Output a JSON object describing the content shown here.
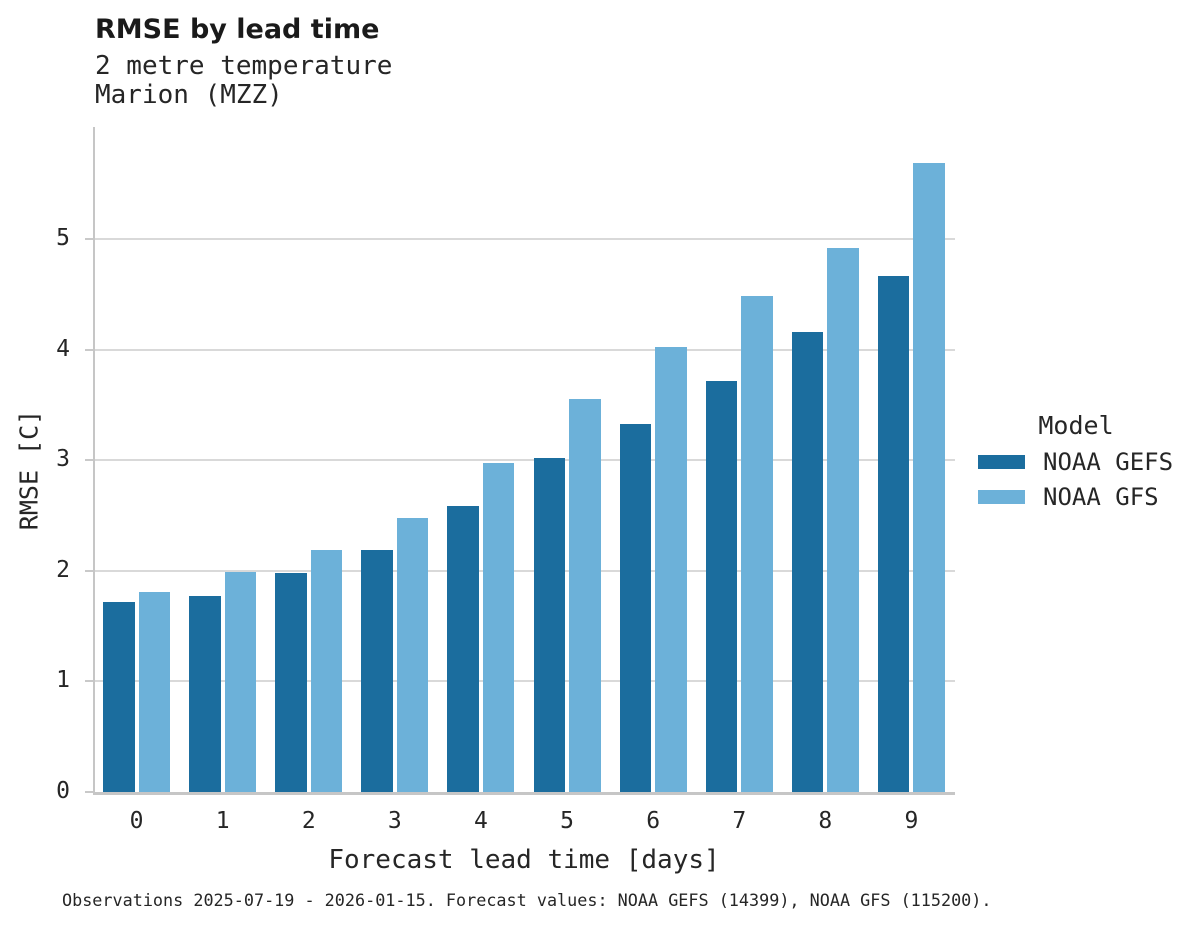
{
  "header": {
    "title": "RMSE by lead time",
    "subtitle_line1": "2 metre temperature",
    "subtitle_line2": "Marion (MZZ)"
  },
  "chart_data": {
    "type": "bar",
    "title": "RMSE by lead time",
    "subtitle": [
      "2 metre temperature",
      "Marion (MZZ)"
    ],
    "categories": [
      "0",
      "1",
      "2",
      "3",
      "4",
      "5",
      "6",
      "7",
      "8",
      "9"
    ],
    "series": [
      {
        "name": "NOAA GEFS",
        "color": "#1b6d9e",
        "values": [
          1.72,
          1.77,
          1.98,
          2.19,
          2.59,
          3.02,
          3.33,
          3.72,
          4.16,
          4.67
        ]
      },
      {
        "name": "NOAA GFS",
        "color": "#6cb1d9",
        "values": [
          1.81,
          1.99,
          2.19,
          2.48,
          2.98,
          3.56,
          4.03,
          4.49,
          4.92,
          5.69
        ]
      }
    ],
    "xlabel": "Forecast lead time [days]",
    "ylabel": "RMSE [C]",
    "ylim": [
      0,
      6
    ],
    "yticks": [
      0,
      1,
      2,
      3,
      4,
      5
    ],
    "grid": "horizontal",
    "legend_position": "right"
  },
  "legend": {
    "title": "Model",
    "items": [
      {
        "label": "NOAA GEFS",
        "color": "#1b6d9e"
      },
      {
        "label": "NOAA GFS",
        "color": "#6cb1d9"
      }
    ]
  },
  "footer": {
    "note": "Observations 2025-07-19 - 2026-01-15. Forecast values: NOAA GEFS (14399), NOAA GFS (115200)."
  },
  "colors": {
    "gefs": "#1b6d9e",
    "gfs": "#6cb1d9",
    "gridline": "#d9d9d9",
    "axis": "#c6c6c6",
    "text": "#262626"
  }
}
